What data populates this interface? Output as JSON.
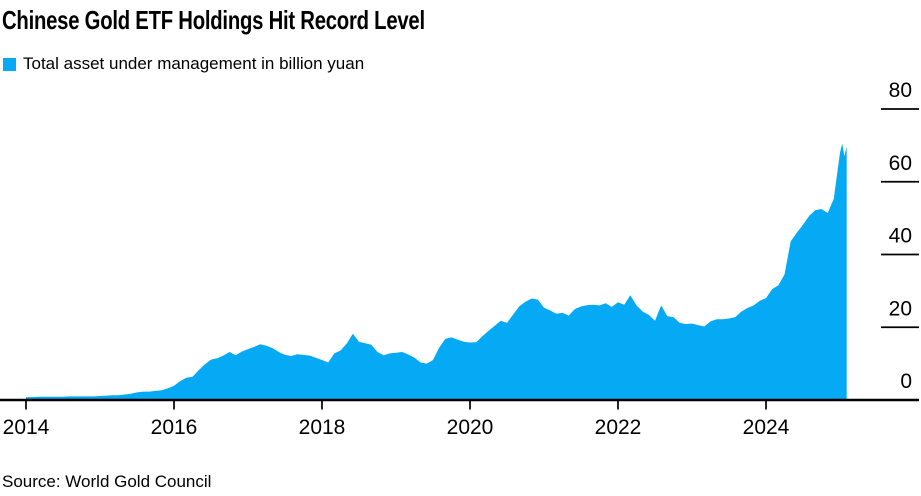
{
  "header": {
    "title": "Chinese Gold ETF Holdings Hit Record Level"
  },
  "legend": {
    "label": "Total asset under management in billion yuan",
    "swatch_color": "#06a9f4"
  },
  "footer": {
    "source": "Source: World Gold Council"
  },
  "chart_data": {
    "type": "area",
    "title": "Chinese Gold ETF Holdings Hit Record Level",
    "series_name": "Total asset under management in billion yuan",
    "unit": "billion yuan",
    "x_start_year": 2014,
    "x_interval": "monthly",
    "monthly_values": [
      0.8,
      0.8,
      0.9,
      0.9,
      0.9,
      0.9,
      0.9,
      1.0,
      1.0,
      1.0,
      1.0,
      1.0,
      1.1,
      1.2,
      1.3,
      1.3,
      1.5,
      1.7,
      2.1,
      2.3,
      2.3,
      2.5,
      2.7,
      3.2,
      3.9,
      5.2,
      6.1,
      6.4,
      8.2,
      9.8,
      11.1,
      11.5,
      12.2,
      13.2,
      12.3,
      13.3,
      14.0,
      14.6,
      15.3,
      14.9,
      14.2,
      13.2,
      12.4,
      12.1,
      12.6,
      12.4,
      12.2,
      11.6,
      11.0,
      10.3,
      12.8,
      13.6,
      15.5,
      18.2,
      16.0,
      15.6,
      15.2,
      13.2,
      12.3,
      12.8,
      13.0,
      13.2,
      12.5,
      11.6,
      10.3,
      10.0,
      11.0,
      14.4,
      16.8,
      17.2,
      16.6,
      16.0,
      15.8,
      15.9,
      17.5,
      19.0,
      20.4,
      21.8,
      21.2,
      23.5,
      25.8,
      27.0,
      27.9,
      27.6,
      25.4,
      24.6,
      23.7,
      24.0,
      23.2,
      25.0,
      25.7,
      26.1,
      26.2,
      26.0,
      26.6,
      25.6,
      26.9,
      26.2,
      28.8,
      26.0,
      24.3,
      23.4,
      21.8,
      26.0,
      23.0,
      22.8,
      21.2,
      20.9,
      21.0,
      20.6,
      20.2,
      21.6,
      22.2,
      22.2,
      22.4,
      22.8,
      24.3,
      25.3,
      26.0,
      27.3,
      28.0,
      30.5,
      31.5,
      34.5,
      43.6,
      46.0,
      48.2,
      50.6,
      52.2,
      52.5,
      51.4,
      55.3,
      68.0
    ],
    "final_points": [
      [
        2025.03,
        70.5
      ],
      [
        2025.06,
        67.0
      ],
      [
        2025.09,
        69.6
      ]
    ],
    "x_ticks": [
      2014,
      2016,
      2018,
      2020,
      2022,
      2024
    ],
    "y_ticks": [
      0,
      20,
      40,
      60,
      80
    ],
    "y_tick_labels": [
      "0",
      "20",
      "40",
      "60",
      "80"
    ],
    "ylim": [
      0,
      80
    ],
    "xlim": [
      2014,
      2025.1
    ],
    "area_color": "#06a9f4",
    "axis_color": "#000000",
    "grid": "short right-side dashes at y ticks only, labels above dashes",
    "legend_position": "top-left"
  }
}
